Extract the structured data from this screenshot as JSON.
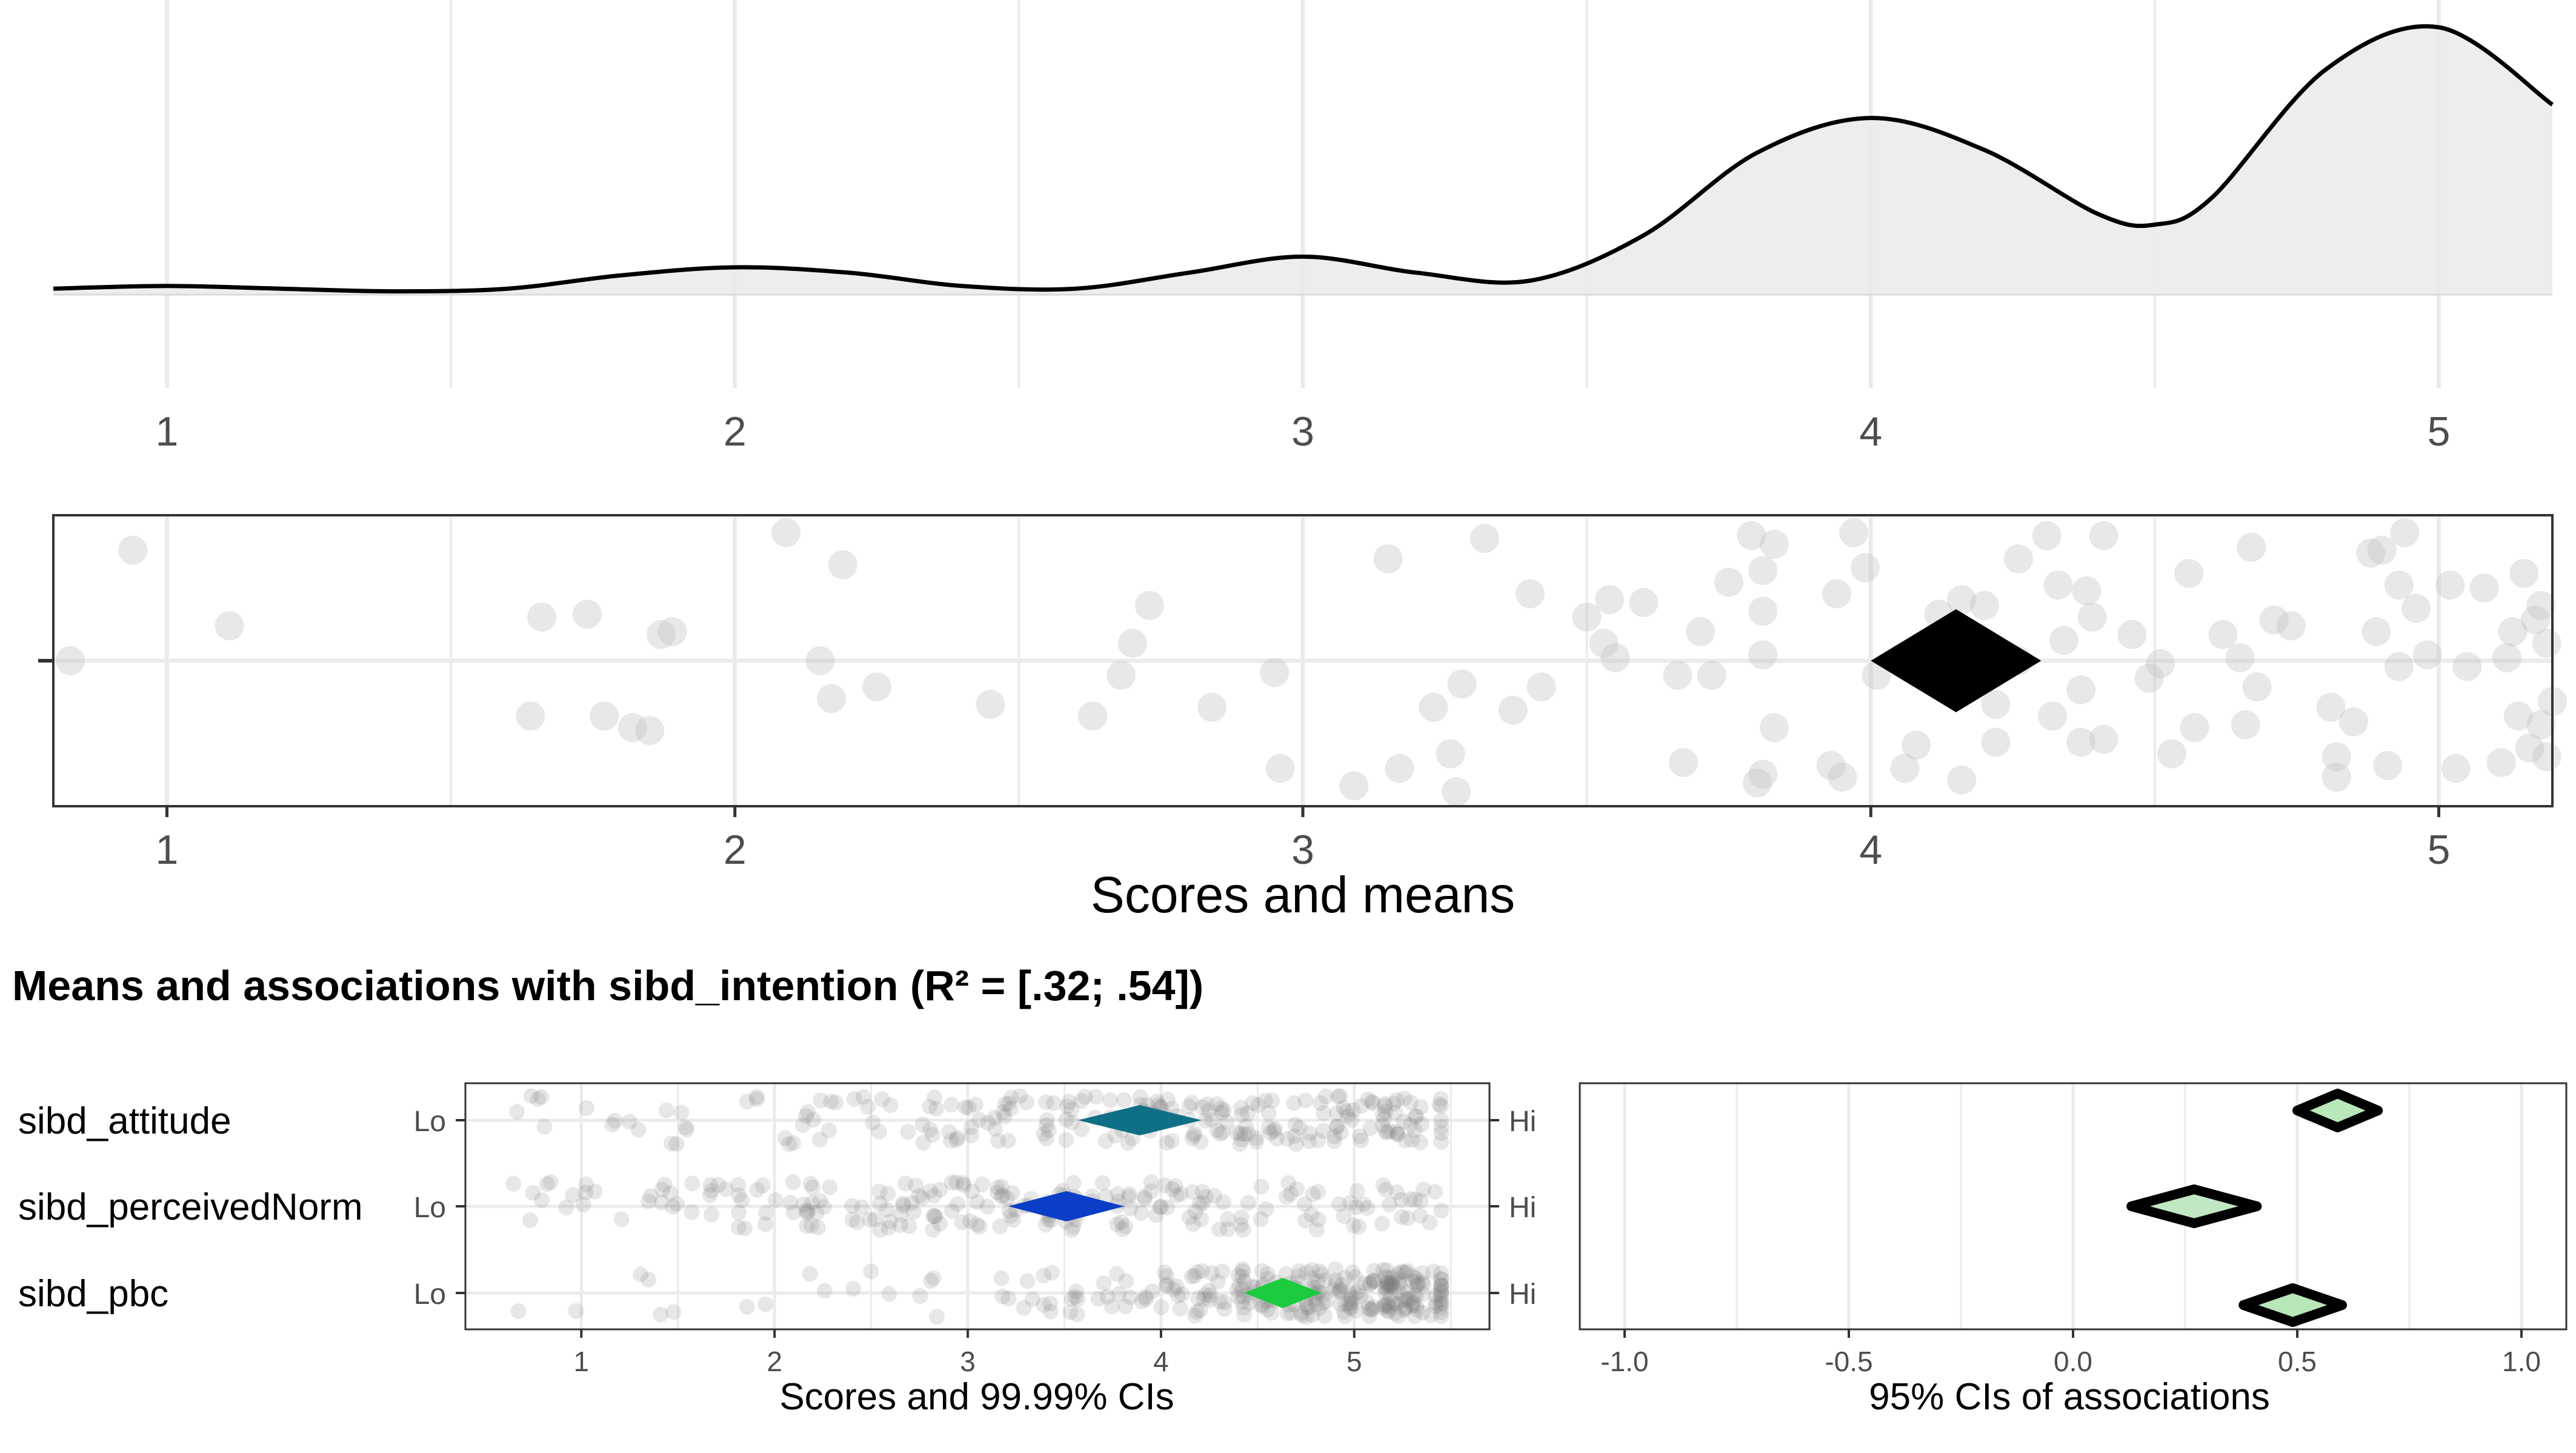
{
  "chart_data": [
    {
      "type": "area",
      "panel": "density",
      "xlim": [
        0.8,
        5.2
      ],
      "x_ticks": [
        "1",
        "2",
        "3",
        "4",
        "5"
      ],
      "x": [
        0.8,
        1.0,
        1.2,
        1.4,
        1.6,
        1.8,
        2.0,
        2.2,
        2.4,
        2.6,
        2.8,
        3.0,
        3.2,
        3.4,
        3.6,
        3.8,
        4.0,
        4.2,
        4.4,
        4.5,
        4.6,
        4.8,
        5.0,
        5.2
      ],
      "y": [
        0.02,
        0.03,
        0.02,
        0.01,
        0.02,
        0.07,
        0.1,
        0.08,
        0.03,
        0.02,
        0.08,
        0.14,
        0.08,
        0.05,
        0.22,
        0.53,
        0.66,
        0.54,
        0.3,
        0.26,
        0.36,
        0.84,
        1.0,
        0.71
      ],
      "grid": true
    },
    {
      "type": "scatter",
      "panel": "scores",
      "xlim": [
        0.8,
        5.2
      ],
      "x_ticks": [
        "1",
        "2",
        "3",
        "4",
        "5"
      ],
      "xlabel": "Scores and means",
      "mean": 4.15,
      "ci": [
        4.0,
        4.3
      ],
      "points": [
        [
          0.94,
          0.38
        ],
        [
          0.83,
          0.0
        ],
        [
          1.11,
          0.12
        ],
        [
          1.64,
          -0.19
        ],
        [
          1.66,
          0.15
        ],
        [
          1.74,
          0.16
        ],
        [
          1.77,
          -0.19
        ],
        [
          1.82,
          -0.23
        ],
        [
          1.85,
          -0.24
        ],
        [
          1.87,
          0.09
        ],
        [
          1.89,
          0.1
        ],
        [
          2.09,
          0.44
        ],
        [
          2.15,
          -0.0
        ],
        [
          2.17,
          -0.13
        ],
        [
          2.19,
          0.33
        ],
        [
          2.25,
          -0.09
        ],
        [
          2.45,
          -0.15
        ],
        [
          2.63,
          -0.19
        ],
        [
          2.68,
          -0.05
        ],
        [
          2.7,
          0.06
        ],
        [
          2.73,
          0.19
        ],
        [
          2.84,
          -0.16
        ],
        [
          2.95,
          -0.04
        ],
        [
          2.96,
          -0.37
        ],
        [
          3.09,
          -0.43
        ],
        [
          3.15,
          0.35
        ],
        [
          3.17,
          -0.37
        ],
        [
          3.23,
          -0.16
        ],
        [
          3.26,
          -0.32
        ],
        [
          3.27,
          -0.45
        ],
        [
          3.28,
          -0.08
        ],
        [
          3.32,
          0.42
        ],
        [
          3.37,
          -0.17
        ],
        [
          3.4,
          0.23
        ],
        [
          3.42,
          -0.09
        ],
        [
          3.5,
          0.15
        ],
        [
          3.53,
          0.06
        ],
        [
          3.54,
          0.21
        ],
        [
          3.55,
          0.01
        ],
        [
          3.6,
          0.2
        ],
        [
          3.66,
          -0.05
        ],
        [
          3.67,
          -0.35
        ],
        [
          3.7,
          0.1
        ],
        [
          3.72,
          -0.05
        ],
        [
          3.75,
          0.27
        ],
        [
          3.79,
          0.43
        ],
        [
          3.8,
          -0.42
        ],
        [
          3.81,
          0.31
        ],
        [
          3.81,
          0.17
        ],
        [
          3.81,
          0.02
        ],
        [
          3.81,
          -0.39
        ],
        [
          3.83,
          -0.23
        ],
        [
          3.83,
          0.4
        ],
        [
          3.93,
          -0.36
        ],
        [
          3.94,
          0.23
        ],
        [
          3.95,
          -0.4
        ],
        [
          3.97,
          0.44
        ],
        [
          3.99,
          0.32
        ],
        [
          4.01,
          -0.05
        ],
        [
          4.06,
          -0.37
        ],
        [
          4.08,
          -0.29
        ],
        [
          4.12,
          0.16
        ],
        [
          4.16,
          -0.41
        ],
        [
          4.16,
          0.21
        ],
        [
          4.22,
          -0.15
        ],
        [
          4.26,
          0.35
        ],
        [
          4.2,
          0.19
        ],
        [
          4.22,
          -0.28
        ],
        [
          4.26,
          -0.0
        ],
        [
          4.31,
          0.43
        ],
        [
          4.32,
          -0.19
        ],
        [
          4.33,
          0.26
        ],
        [
          4.34,
          0.07
        ],
        [
          4.37,
          -0.1
        ],
        [
          4.37,
          -0.28
        ],
        [
          4.38,
          0.24
        ],
        [
          4.39,
          0.15
        ],
        [
          4.41,
          0.43
        ],
        [
          4.41,
          -0.27
        ],
        [
          4.46,
          0.09
        ],
        [
          4.49,
          -0.06
        ],
        [
          4.51,
          -0.01
        ],
        [
          4.53,
          -0.32
        ],
        [
          4.56,
          0.3
        ],
        [
          4.57,
          -0.23
        ],
        [
          4.62,
          0.09
        ],
        [
          4.65,
          0.01
        ],
        [
          4.66,
          -0.22
        ],
        [
          4.67,
          0.39
        ],
        [
          4.68,
          -0.09
        ],
        [
          4.71,
          0.14
        ],
        [
          4.74,
          0.12
        ],
        [
          4.81,
          -0.16
        ],
        [
          4.82,
          -0.4
        ],
        [
          4.82,
          -0.33
        ],
        [
          4.85,
          -0.21
        ],
        [
          4.88,
          0.37
        ],
        [
          4.89,
          0.1
        ],
        [
          4.9,
          0.38
        ],
        [
          4.91,
          -0.36
        ],
        [
          4.93,
          -0.02
        ],
        [
          4.93,
          0.26
        ],
        [
          4.94,
          0.44
        ],
        [
          4.96,
          0.18
        ],
        [
          4.98,
          0.02
        ],
        [
          5.02,
          0.26
        ],
        [
          5.03,
          -0.37
        ],
        [
          5.05,
          -0.02
        ],
        [
          5.08,
          0.25
        ],
        [
          5.11,
          -0.35
        ],
        [
          5.12,
          0.01
        ],
        [
          5.13,
          0.1
        ],
        [
          5.14,
          -0.19
        ],
        [
          5.15,
          0.3
        ],
        [
          5.16,
          -0.3
        ],
        [
          5.17,
          0.14
        ],
        [
          5.18,
          -0.22
        ],
        [
          5.19,
          0.06
        ],
        [
          5.19,
          -0.33
        ],
        [
          5.18,
          0.19
        ],
        [
          5.2,
          -0.14
        ]
      ],
      "grid": true
    },
    {
      "type": "scatter",
      "panel": "diamond-means",
      "title": "Means and associations with sibd_intention (R² = [.32; .54])",
      "xlabel": "Scores and 99.99% CIs",
      "xlim": [
        0.4,
        5.7
      ],
      "x_ticks": [
        "1",
        "2",
        "3",
        "4",
        "5"
      ],
      "anchor_low": "Lo",
      "anchor_high": "Hi",
      "rows": [
        {
          "label": "sibd_attitude",
          "color": "#0f6f87",
          "mean": 3.89,
          "ci": [
            3.57,
            4.21
          ]
        },
        {
          "label": "sibd_perceivedNorm",
          "color": "#0a3ec7",
          "mean": 3.51,
          "ci": [
            3.21,
            3.81
          ]
        },
        {
          "label": "sibd_pbc",
          "color": "#1ccc3e",
          "mean": 4.63,
          "ci": [
            4.43,
            4.83
          ]
        }
      ],
      "grid": true
    },
    {
      "type": "scatter",
      "panel": "associations",
      "xlabel": "95% CIs of associations",
      "xlim": [
        -1.1,
        1.1
      ],
      "x_ticks": [
        "-1.0",
        "-0.5",
        "0.0",
        "0.5",
        "1.0"
      ],
      "rows": [
        {
          "label": "sibd_attitude",
          "color": "#b8e7b9",
          "estimate": 0.59,
          "ci": [
            0.5,
            0.68
          ]
        },
        {
          "label": "sibd_perceivedNorm",
          "color": "#c2e8c3",
          "estimate": 0.27,
          "ci": [
            0.13,
            0.41
          ]
        },
        {
          "label": "sibd_pbc",
          "color": "#b8e7b9",
          "estimate": 0.49,
          "ci": [
            0.38,
            0.6
          ]
        }
      ],
      "grid": true
    }
  ]
}
